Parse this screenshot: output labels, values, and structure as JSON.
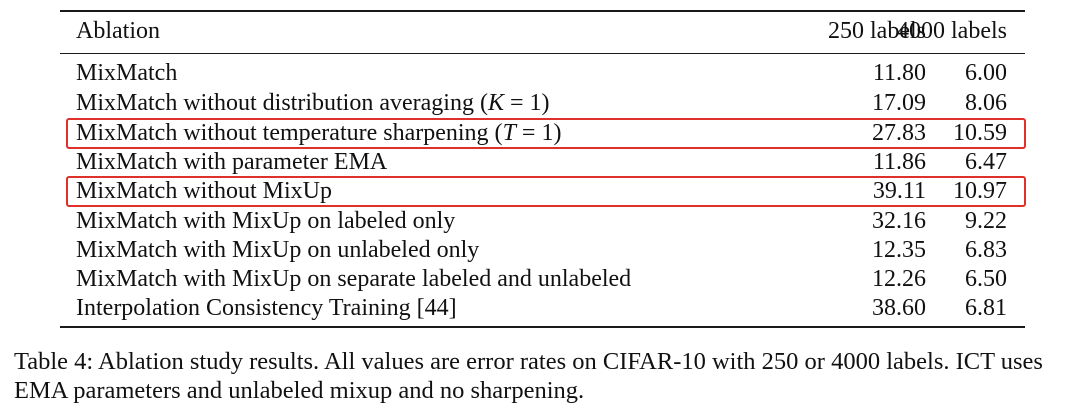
{
  "table": {
    "headers": {
      "ablation": "Ablation",
      "col1": "250 labels",
      "col2": "4000 labels"
    },
    "rows": [
      {
        "pre": "MixMatch",
        "var": "",
        "post": "",
        "v250": "11.80",
        "v4000": "6.00",
        "highlighted": false
      },
      {
        "pre": "MixMatch without distribution averaging (",
        "var": "K",
        "post": " = 1)",
        "v250": "17.09",
        "v4000": "8.06",
        "highlighted": false
      },
      {
        "pre": "MixMatch without temperature sharpening (",
        "var": "T",
        "post": " = 1)",
        "v250": "27.83",
        "v4000": "10.59",
        "highlighted": true
      },
      {
        "pre": "MixMatch with parameter EMA",
        "var": "",
        "post": "",
        "v250": "11.86",
        "v4000": "6.47",
        "highlighted": false
      },
      {
        "pre": "MixMatch without MixUp",
        "var": "",
        "post": "",
        "v250": "39.11",
        "v4000": "10.97",
        "highlighted": true
      },
      {
        "pre": "MixMatch with MixUp on labeled only",
        "var": "",
        "post": "",
        "v250": "32.16",
        "v4000": "9.22",
        "highlighted": false
      },
      {
        "pre": "MixMatch with MixUp on unlabeled only",
        "var": "",
        "post": "",
        "v250": "12.35",
        "v4000": "6.83",
        "highlighted": false
      },
      {
        "pre": "MixMatch with MixUp on separate labeled and unlabeled",
        "var": "",
        "post": "",
        "v250": "12.26",
        "v4000": "6.50",
        "highlighted": false
      },
      {
        "pre": "Interpolation Consistency Training [44]",
        "var": "",
        "post": "",
        "v250": "38.60",
        "v4000": "6.81",
        "highlighted": false
      }
    ]
  },
  "caption": {
    "text": "Table 4: Ablation study results. All values are error rates on CIFAR-10 with 250 or 4000 labels. ICT uses EMA parameters and unlabeled mixup and no sharpening."
  },
  "colors": {
    "highlight_border": "#e0302a",
    "rule": "#1a1a1a",
    "text": "#111111"
  }
}
